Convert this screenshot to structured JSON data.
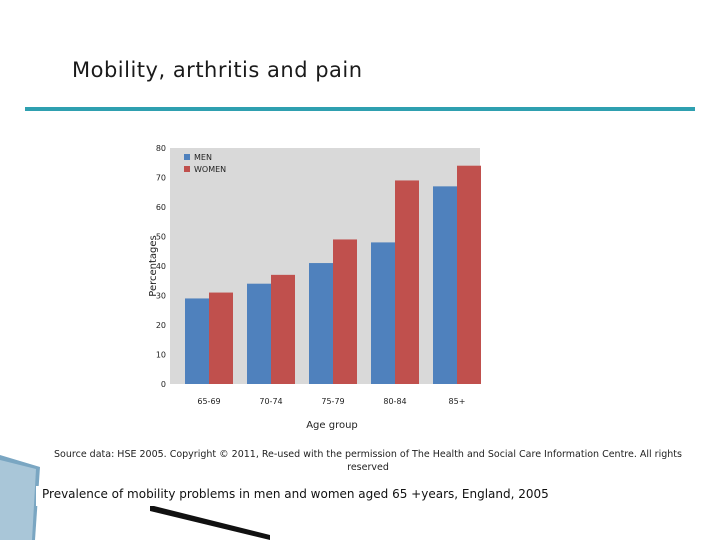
{
  "slide": {
    "title": "Mobility, arthritis and pain",
    "source_note": "Source data: HSE 2005.  Copyright © 2011, Re-used with the permission of The Health and Social Care Information Centre.  All rights reserved",
    "caption": "Prevalence of mobility problems in men and women aged 65 +years, England, 2005"
  },
  "colors": {
    "accent_rule": "#2fa0b0",
    "men": "#4f81bd",
    "women": "#c0504d",
    "plot_bg": "#d9d9d9"
  },
  "chart_data": {
    "type": "bar",
    "title": "",
    "xlabel": "Age group",
    "ylabel": "Percentages",
    "ylim": [
      0,
      80
    ],
    "yticks": [
      0,
      10,
      20,
      30,
      40,
      50,
      60,
      70,
      80
    ],
    "categories": [
      "65-69",
      "70-74",
      "75-79",
      "80-84",
      "85+"
    ],
    "series": [
      {
        "name": "MEN",
        "color": "#4f81bd",
        "values": [
          29,
          34,
          41,
          48,
          67
        ]
      },
      {
        "name": "WOMEN",
        "color": "#c0504d",
        "values": [
          31,
          37,
          49,
          69,
          74
        ]
      }
    ],
    "legend": "top-left",
    "grid": false
  }
}
